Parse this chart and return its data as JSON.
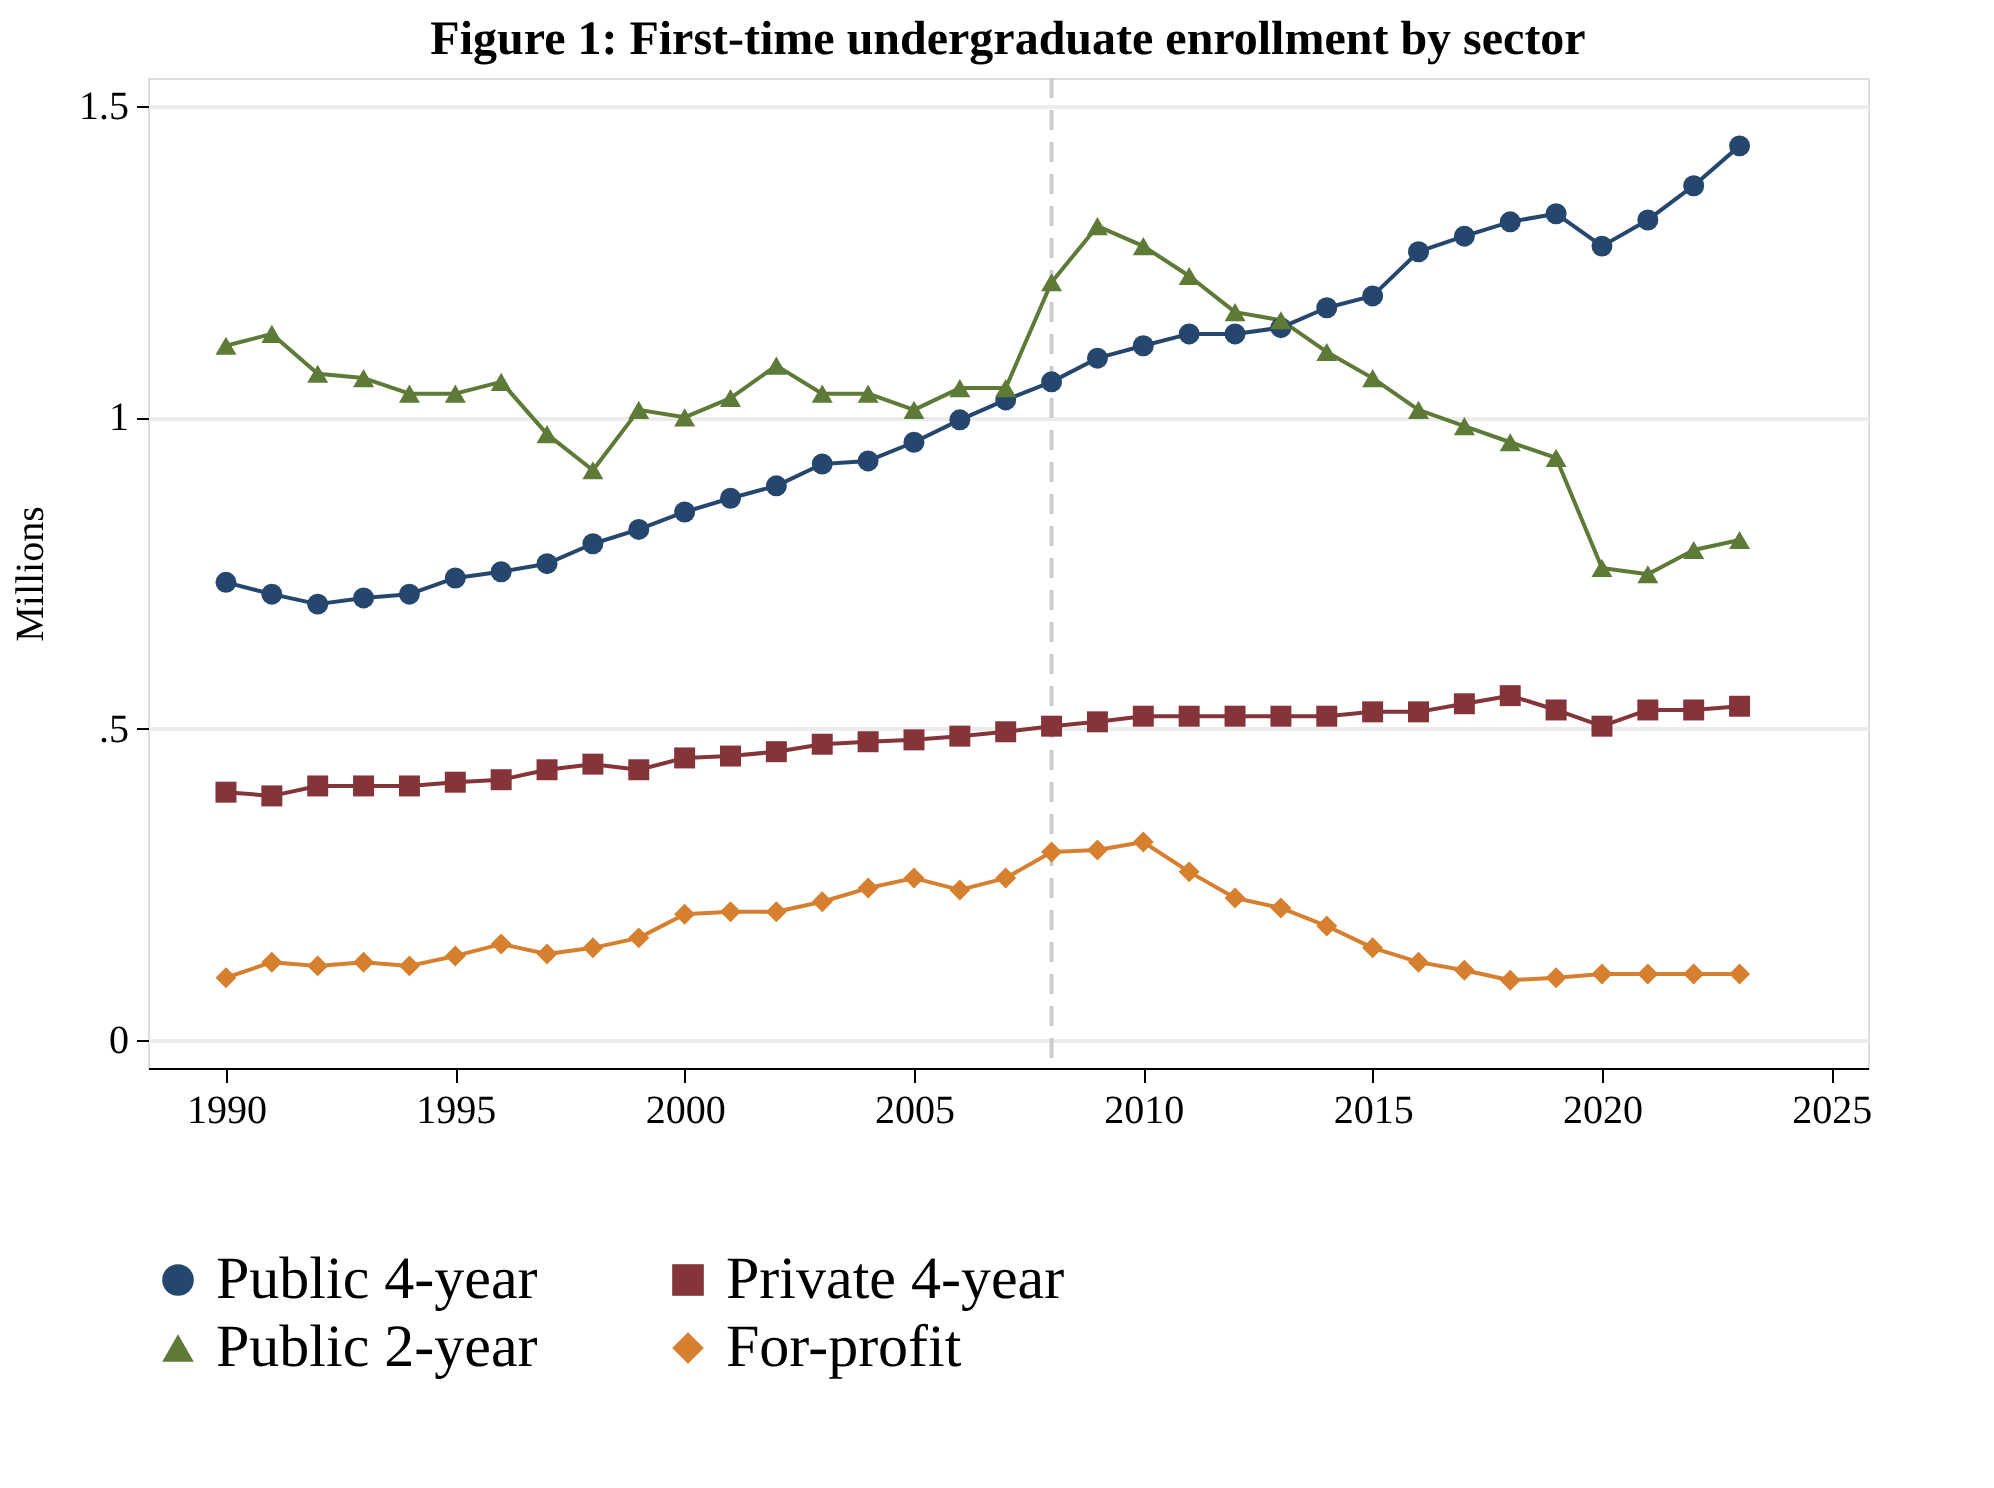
{
  "chart_data": {
    "type": "line",
    "title": "Figure 1: First-time undergraduate enrollment by sector",
    "ylabel": "Millions",
    "x": [
      1990,
      1991,
      1992,
      1993,
      1994,
      1995,
      1996,
      1997,
      1998,
      1999,
      2000,
      2001,
      2002,
      2003,
      2004,
      2005,
      2006,
      2007,
      2008,
      2009,
      2010,
      2011,
      2012,
      2013,
      2014,
      2015,
      2016,
      2017,
      2018,
      2019,
      2020,
      2021,
      2022,
      2023
    ],
    "series": [
      {
        "name": "Public 4-year",
        "color": "#25476e",
        "marker": "circle",
        "values": [
          0.735,
          0.716,
          0.7,
          0.71,
          0.716,
          0.742,
          0.752,
          0.765,
          0.797,
          0.82,
          0.848,
          0.87,
          0.89,
          0.925,
          0.93,
          0.96,
          0.996,
          1.028,
          1.057,
          1.095,
          1.115,
          1.134,
          1.134,
          1.144,
          1.176,
          1.195,
          1.266,
          1.291,
          1.314,
          1.327,
          1.275,
          1.317,
          1.372,
          1.436
        ]
      },
      {
        "name": "Private 4-year",
        "color": "#853539",
        "marker": "square",
        "values": [
          0.398,
          0.392,
          0.408,
          0.408,
          0.408,
          0.414,
          0.418,
          0.434,
          0.443,
          0.434,
          0.453,
          0.456,
          0.463,
          0.475,
          0.479,
          0.482,
          0.488,
          0.495,
          0.504,
          0.511,
          0.52,
          0.52,
          0.52,
          0.52,
          0.52,
          0.527,
          0.527,
          0.54,
          0.553,
          0.53,
          0.504,
          0.53,
          0.53,
          0.536
        ]
      },
      {
        "name": "Public 2-year",
        "color": "#5d7a37",
        "marker": "triangle",
        "values": [
          1.115,
          1.134,
          1.07,
          1.063,
          1.038,
          1.038,
          1.057,
          0.973,
          0.915,
          1.012,
          1.0,
          1.031,
          1.083,
          1.038,
          1.038,
          1.012,
          1.047,
          1.047,
          1.217,
          1.307,
          1.275,
          1.227,
          1.169,
          1.156,
          1.105,
          1.063,
          1.012,
          0.986,
          0.96,
          0.935,
          0.758,
          0.748,
          0.787,
          0.803
        ]
      },
      {
        "name": "For-profit",
        "color": "#d67f2e",
        "marker": "diamond",
        "values": [
          0.1,
          0.125,
          0.119,
          0.125,
          0.119,
          0.135,
          0.154,
          0.138,
          0.148,
          0.164,
          0.202,
          0.206,
          0.206,
          0.222,
          0.244,
          0.26,
          0.241,
          0.26,
          0.302,
          0.305,
          0.318,
          0.27,
          0.228,
          0.212,
          0.183,
          0.148,
          0.125,
          0.112,
          0.096,
          0.1,
          0.106,
          0.106,
          0.106,
          0.106
        ]
      }
    ],
    "xlim": [
      1988.3,
      2025.8
    ],
    "xticks": [
      1990,
      1995,
      2000,
      2005,
      2010,
      2015,
      2020,
      2025
    ],
    "ylim": [
      -0.045,
      1.545
    ],
    "yticks": [
      0,
      {
        "value": 0.5,
        "label": ".5"
      },
      1,
      1.5
    ],
    "ref_lines": [
      {
        "axis": "x",
        "value": 2008,
        "color": "#cccccc",
        "line_style": "dashed"
      }
    ],
    "grid": "y",
    "legend": "bottom",
    "line_style": "solid"
  }
}
